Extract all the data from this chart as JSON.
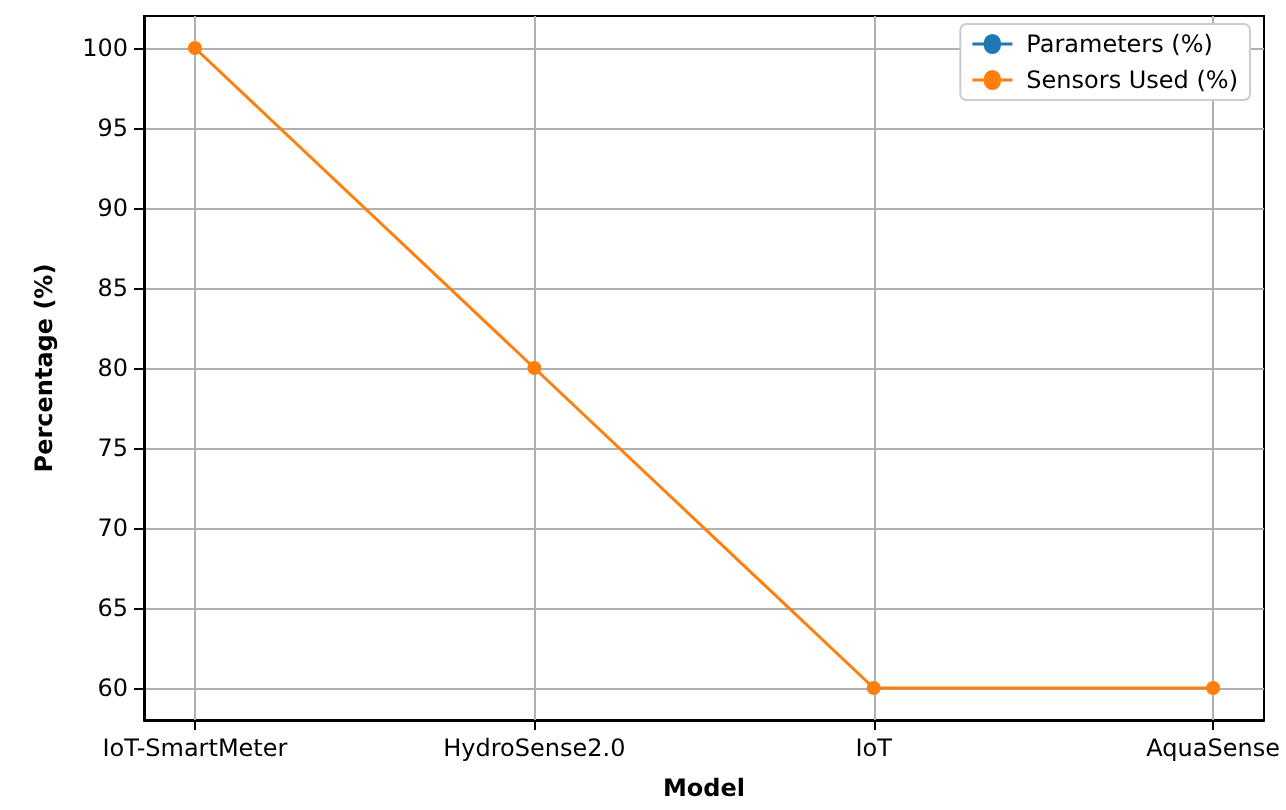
{
  "chart_data": {
    "type": "line",
    "xlabel": "Model",
    "ylabel": "Percentage (%)",
    "categories": [
      "IoT-SmartMeter",
      "HydroSense2.0",
      "IoT",
      "AquaSense"
    ],
    "series": [
      {
        "name": "Parameters (%)",
        "color": "#1f77b4",
        "values": [
          null,
          null,
          null,
          null
        ]
      },
      {
        "name": "Sensors Used (%)",
        "color": "#ff7f0e",
        "values": [
          100,
          80,
          60,
          60
        ]
      }
    ],
    "ylim": [
      58,
      102
    ],
    "yticks": [
      60,
      65,
      70,
      75,
      80,
      85,
      90,
      95,
      100
    ],
    "grid": true,
    "legend": "top right",
    "marker": "circle",
    "line_style": "solid"
  }
}
